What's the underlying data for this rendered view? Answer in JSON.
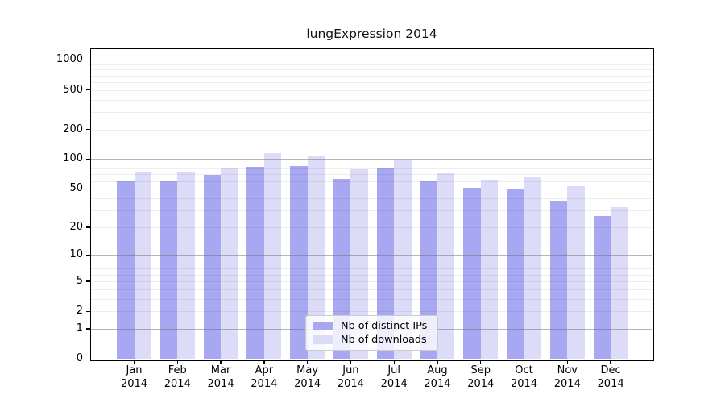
{
  "header": {
    "title": "lungExpression 2014"
  },
  "colors": {
    "ips": "#a8a8f2",
    "downloads": "#dcdcf9",
    "major_grid": "rgba(110,110,110,0.5)",
    "minor_grid": "rgba(0,0,0,0.065)",
    "axis_line": "#000000",
    "text": "#000000",
    "legend_border": "#cbcbcb",
    "legend_bg": "rgba(255,255,255,0.8)"
  },
  "legend": {
    "items": [
      {
        "label": "Nb of distinct IPs",
        "series": "ips"
      },
      {
        "label": "Nb of downloads",
        "series": "downloads"
      }
    ]
  },
  "chart_data": {
    "type": "bar",
    "title": "lungExpression 2014",
    "yscale": "log1p",
    "categories": [
      "Jan",
      "Feb",
      "Mar",
      "Apr",
      "May",
      "Jun",
      "Jul",
      "Aug",
      "Sep",
      "Oct",
      "Nov",
      "Dec"
    ],
    "year": "2014",
    "series": [
      {
        "name": "Nb of distinct IPs",
        "key": "ips",
        "values": [
          60,
          59,
          69,
          83,
          85,
          63,
          81,
          59,
          51,
          49,
          38,
          26
        ]
      },
      {
        "name": "Nb of downloads",
        "key": "downloads",
        "values": [
          74,
          74,
          81,
          115,
          108,
          79,
          98,
          72,
          62,
          66,
          53,
          32
        ]
      }
    ],
    "yticks": [
      0,
      1,
      2,
      5,
      10,
      20,
      50,
      100,
      200,
      500,
      1000
    ],
    "grid": {
      "major": [
        1,
        10,
        100,
        1000
      ],
      "minor": [
        2,
        3,
        4,
        5,
        6,
        7,
        8,
        9,
        20,
        30,
        40,
        50,
        60,
        70,
        80,
        90,
        200,
        300,
        400,
        500,
        600,
        700,
        800,
        900
      ]
    },
    "ylim": [
      0,
      1300
    ],
    "xlabel": "",
    "ylabel": "",
    "legend_position": "inside lower center",
    "grid_on": true
  }
}
